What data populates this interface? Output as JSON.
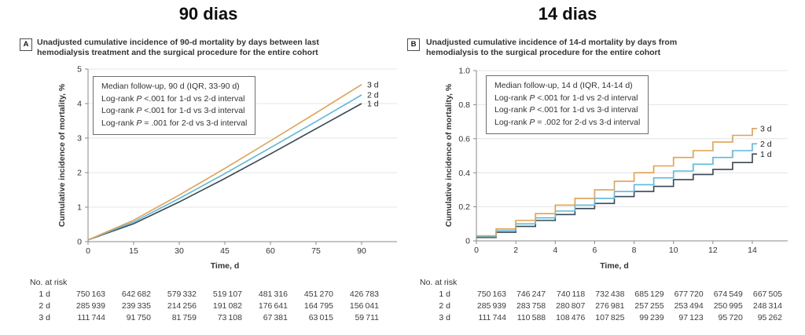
{
  "chart_data": [
    {
      "type": "line",
      "panel_label": "A",
      "title": "90 dias",
      "caption": "Unadjusted cumulative incidence of 90-d mortality by days between last hemodialysis treatment and the surgical procedure for the entire cohort",
      "legend_lines": [
        "Median follow-up, 90 d (IQR, 33-90 d)",
        "Log-rank P <.001 for 1-d vs 2-d interval",
        "Log-rank P <.001 for 1-d vs 3-d interval",
        "Log-rank P = .001 for 2-d vs 3-d interval"
      ],
      "xlabel": "Time, d",
      "ylabel": "Cumulative incidence of mortality, %",
      "xlim": [
        0,
        90
      ],
      "ylim": [
        0,
        5
      ],
      "xticks": [
        0,
        15,
        30,
        45,
        60,
        75,
        90
      ],
      "xtick_labels": [
        "0",
        "15",
        "30",
        "45",
        "60",
        "75",
        "90"
      ],
      "yticks": [
        0,
        1,
        2,
        3,
        4,
        5
      ],
      "ytick_labels": [
        "0",
        "1",
        "2",
        "3",
        "4",
        "5"
      ],
      "grid": "horizontal",
      "legend_position": "top-left-inside",
      "series": [
        {
          "name": "3 d",
          "color": "#E0A252",
          "x": [
            0,
            15,
            30,
            45,
            60,
            75,
            90
          ],
          "y": [
            0.05,
            0.62,
            1.35,
            2.12,
            2.92,
            3.73,
            4.55
          ]
        },
        {
          "name": "2 d",
          "color": "#5BB8DE",
          "x": [
            0,
            15,
            30,
            45,
            60,
            75,
            90
          ],
          "y": [
            0.05,
            0.57,
            1.25,
            1.97,
            2.72,
            3.48,
            4.25
          ]
        },
        {
          "name": "1 d",
          "color": "#384854",
          "x": [
            0,
            15,
            30,
            45,
            60,
            75,
            90
          ],
          "y": [
            0.05,
            0.52,
            1.15,
            1.83,
            2.54,
            3.27,
            4.0
          ]
        }
      ],
      "at_risk": {
        "header": "No. at risk",
        "rows": [
          {
            "label": "1 d",
            "values": [
              "750 163",
              "642 682",
              "579 332",
              "519 107",
              "481 316",
              "451 270",
              "426 783"
            ]
          },
          {
            "label": "2 d",
            "values": [
              "285 939",
              "239 335",
              "214 256",
              "191 082",
              "176 641",
              "164 795",
              "156 041"
            ]
          },
          {
            "label": "3 d",
            "values": [
              "111 744",
              "91 750",
              "81 759",
              "73 108",
              "67 381",
              "63 015",
              "59 711"
            ]
          }
        ]
      }
    },
    {
      "type": "step",
      "panel_label": "B",
      "title": "14 dias",
      "caption": "Unadjusted cumulative incidence of 14-d mortality by days from hemodialysis to the surgical procedure for the entire cohort",
      "legend_lines": [
        "Median follow-up, 14 d (IQR, 14-14 d)",
        "Log-rank P <.001 for 1-d vs 2-d interval",
        "Log-rank P <.001 for 1-d vs 3-d interval",
        "Log-rank P = .002 for 2-d vs 3-d interval"
      ],
      "xlabel": "Time, d",
      "ylabel": "Cumulative incidence of mortality, %",
      "xlim": [
        0,
        14
      ],
      "ylim": [
        0,
        1.0
      ],
      "xticks": [
        0,
        2,
        4,
        6,
        8,
        10,
        12,
        14
      ],
      "xtick_labels": [
        "0",
        "2",
        "4",
        "6",
        "8",
        "10",
        "12",
        "14"
      ],
      "yticks": [
        0,
        0.2,
        0.4,
        0.6,
        0.8,
        1.0
      ],
      "ytick_labels": [
        "0",
        "0.2",
        "0.4",
        "0.6",
        "0.8",
        "1.0"
      ],
      "grid": "horizontal",
      "legend_position": "top-left-inside",
      "series": [
        {
          "name": "3 d",
          "color": "#E0A252",
          "x": [
            0,
            1,
            2,
            3,
            4,
            5,
            6,
            7,
            8,
            9,
            10,
            11,
            12,
            13,
            14
          ],
          "y": [
            0.03,
            0.07,
            0.12,
            0.16,
            0.21,
            0.25,
            0.3,
            0.35,
            0.4,
            0.44,
            0.49,
            0.53,
            0.58,
            0.62,
            0.66
          ]
        },
        {
          "name": "2 d",
          "color": "#5BB8DE",
          "x": [
            0,
            1,
            2,
            3,
            4,
            5,
            6,
            7,
            8,
            9,
            10,
            11,
            12,
            13,
            14
          ],
          "y": [
            0.025,
            0.06,
            0.1,
            0.135,
            0.175,
            0.21,
            0.25,
            0.29,
            0.33,
            0.37,
            0.41,
            0.45,
            0.49,
            0.53,
            0.57
          ]
        },
        {
          "name": "1 d",
          "color": "#384854",
          "x": [
            0,
            1,
            2,
            3,
            4,
            5,
            6,
            7,
            8,
            9,
            10,
            11,
            12,
            13,
            14
          ],
          "y": [
            0.02,
            0.05,
            0.085,
            0.12,
            0.155,
            0.19,
            0.22,
            0.26,
            0.29,
            0.32,
            0.36,
            0.39,
            0.42,
            0.46,
            0.51
          ]
        }
      ],
      "at_risk": {
        "header": "No. at risk",
        "rows": [
          {
            "label": "1 d",
            "values": [
              "750 163",
              "746 247",
              "740 118",
              "732 438",
              "685 129",
              "677 720",
              "674 549",
              "667 505"
            ]
          },
          {
            "label": "2 d",
            "values": [
              "285 939",
              "283 758",
              "280 807",
              "276 981",
              "257 255",
              "253 494",
              "250 995",
              "248 314"
            ]
          },
          {
            "label": "3 d",
            "values": [
              "111 744",
              "110 588",
              "108 476",
              "107 825",
              "99 239",
              "97 123",
              "95 720",
              "95 262"
            ]
          }
        ]
      }
    }
  ]
}
